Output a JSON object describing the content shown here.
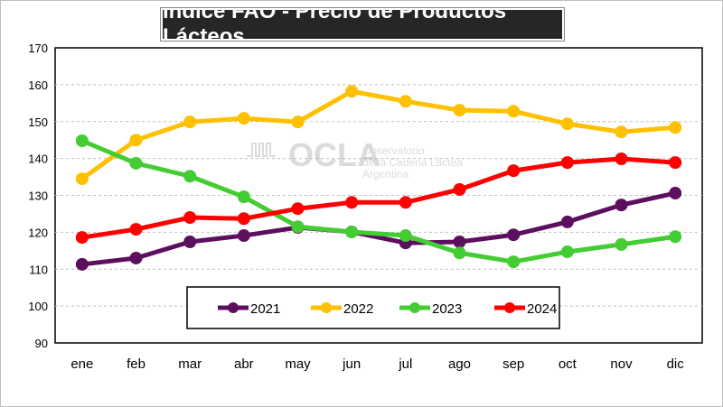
{
  "chart_data": {
    "type": "line",
    "title": "Indice FAO - Precio de Productos Lácteos",
    "xlabel": "",
    "ylabel": "",
    "categories": [
      "ene",
      "feb",
      "mar",
      "abr",
      "may",
      "jun",
      "jul",
      "ago",
      "sep",
      "oct",
      "nov",
      "dic"
    ],
    "ylim": [
      90,
      170
    ],
    "yticks": [
      90,
      100,
      110,
      120,
      130,
      140,
      150,
      160,
      170
    ],
    "grid": true,
    "legend_position": "bottom-center",
    "series": [
      {
        "name": "2021",
        "color": "#5b0f5e",
        "values": [
          111.3,
          113.0,
          117.4,
          119.1,
          121.3,
          120.1,
          117.1,
          117.4,
          119.3,
          122.8,
          127.4,
          130.6
        ]
      },
      {
        "name": "2022",
        "color": "#ffc000",
        "values": [
          134.5,
          145.0,
          149.9,
          150.9,
          149.9,
          158.2,
          155.5,
          153.1,
          152.8,
          149.4,
          147.2,
          148.4
        ]
      },
      {
        "name": "2023",
        "color": "#44cc33",
        "values": [
          144.8,
          138.7,
          135.2,
          129.6,
          121.5,
          120.1,
          119.1,
          114.4,
          112.0,
          114.7,
          116.7,
          118.8
        ]
      },
      {
        "name": "2024",
        "color": "#ff0000",
        "values": [
          118.6,
          120.8,
          124.0,
          123.7,
          126.4,
          128.1,
          128.1,
          131.6,
          136.7,
          138.9,
          139.9,
          138.9
        ]
      }
    ]
  },
  "watermark": {
    "brand": "OCLA",
    "line1": "Observatorio",
    "line2": "de la Cadena Láctea",
    "line3": "Argentina"
  }
}
